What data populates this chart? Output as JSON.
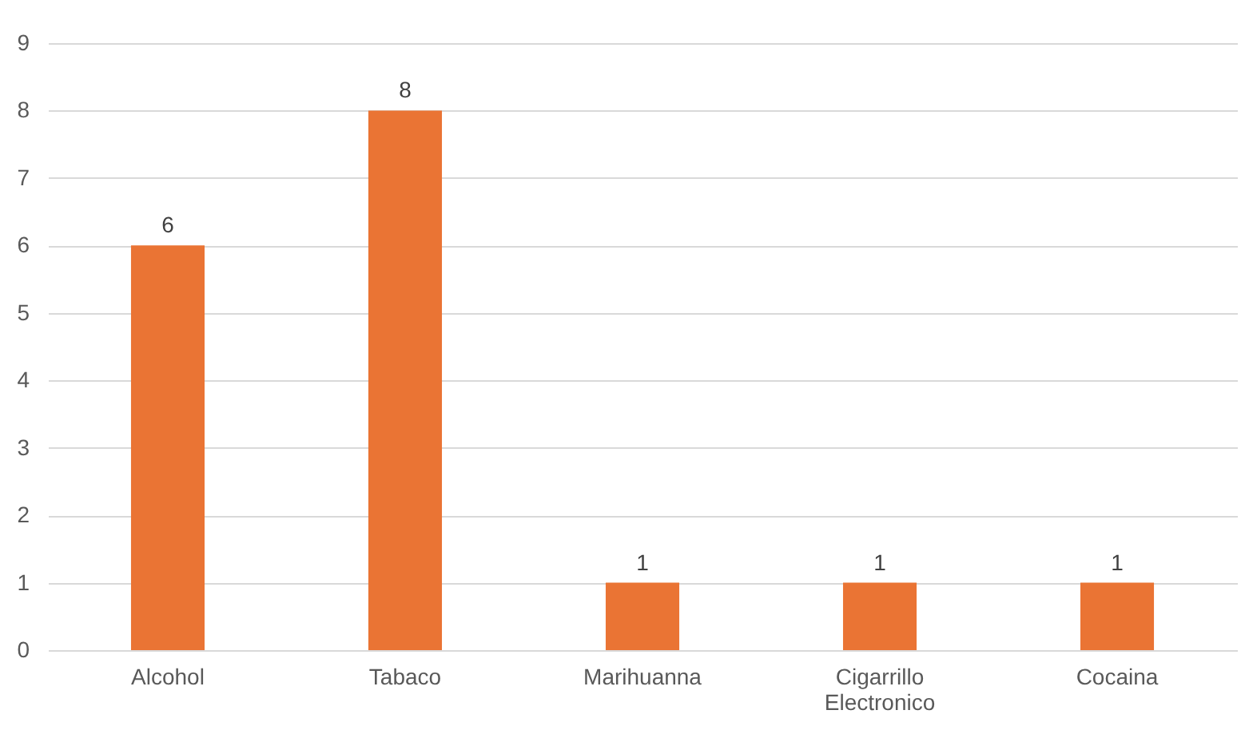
{
  "chart_data": {
    "type": "bar",
    "categories": [
      "Alcohol",
      "Tabaco",
      "Marihuanna",
      "Cigarrillo Electronico",
      "Cocaina"
    ],
    "values": [
      6,
      8,
      1,
      1,
      1
    ],
    "color": "#ea7434",
    "ylim": [
      0,
      9
    ],
    "yticks": [
      0,
      1,
      2,
      3,
      4,
      5,
      6,
      7,
      8,
      9
    ],
    "grid": "y",
    "data_labels": true
  }
}
